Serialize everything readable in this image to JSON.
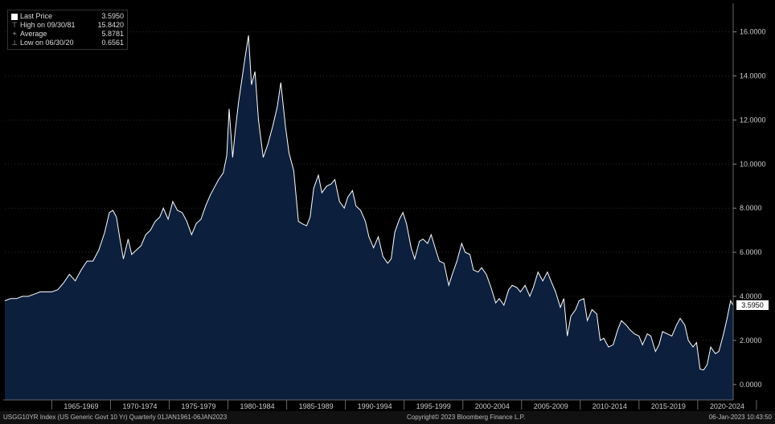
{
  "legend": {
    "last_label": "Last Price",
    "last_value": "3.5950",
    "high_label": "High on 09/30/81",
    "high_value": "15.8420",
    "avg_label": "Average",
    "avg_value": "5.8781",
    "low_label": "Low on 06/30/20",
    "low_value": "0.6561"
  },
  "last_price_tag": "3.5950",
  "footer": {
    "left": "USGG10YR Index (US Generic Govt 10 Yr)  Quarterly 01JAN1961-06JAN2023",
    "center": "Copyright© 2023 Bloomberg Finance L.P.",
    "right": "06-Jan-2023 10:43:50"
  },
  "colors": {
    "background": "#000000",
    "fill": "#0c1f3d",
    "line": "#ffffff"
  },
  "chart_data": {
    "type": "area",
    "title": "",
    "xlabel": "",
    "ylabel": "",
    "ylim": [
      -0.7,
      17.3
    ],
    "y_ticks": [
      "0.0000",
      "2.0000",
      "4.0000",
      "6.0000",
      "8.0000",
      "10.0000",
      "12.0000",
      "14.0000",
      "16.0000"
    ],
    "x_tick_labels": [
      "1965-1969",
      "1970-1974",
      "1975-1979",
      "1980-1984",
      "1985-1989",
      "1990-1994",
      "1995-1999",
      "2000-2004",
      "2005-2009",
      "2010-2014",
      "2015-2019",
      "2020-2024"
    ],
    "x_range": [
      1961.0,
      2023.02
    ],
    "series": [
      {
        "name": "",
        "x": [
          1961.0,
          1961.5,
          1962.0,
          1962.5,
          1963.0,
          1963.5,
          1964.0,
          1964.5,
          1965.0,
          1965.5,
          1966.0,
          1966.5,
          1967.0,
          1967.5,
          1968.0,
          1968.5,
          1969.0,
          1969.5,
          1969.9,
          1970.2,
          1970.5,
          1970.8,
          1971.1,
          1971.5,
          1971.8,
          1972.2,
          1972.6,
          1973.0,
          1973.4,
          1973.8,
          1974.2,
          1974.5,
          1974.9,
          1975.3,
          1975.7,
          1976.1,
          1976.5,
          1976.9,
          1977.3,
          1977.7,
          1978.1,
          1978.5,
          1978.9,
          1979.2,
          1979.6,
          1979.9,
          1980.1,
          1980.4,
          1980.6,
          1980.9,
          1981.2,
          1981.5,
          1981.75,
          1982.0,
          1982.3,
          1982.6,
          1983.0,
          1983.4,
          1983.8,
          1984.2,
          1984.5,
          1984.9,
          1985.2,
          1985.6,
          1986.0,
          1986.3,
          1986.7,
          1987.0,
          1987.3,
          1987.7,
          1988.0,
          1988.4,
          1988.8,
          1989.1,
          1989.5,
          1989.9,
          1990.2,
          1990.6,
          1990.9,
          1991.3,
          1991.7,
          1992.0,
          1992.4,
          1992.8,
          1993.2,
          1993.6,
          1993.9,
          1994.2,
          1994.6,
          1994.9,
          1995.2,
          1995.6,
          1995.9,
          1996.3,
          1996.6,
          1997.0,
          1997.3,
          1997.7,
          1998.0,
          1998.4,
          1998.8,
          1999.1,
          1999.5,
          1999.9,
          2000.2,
          2000.6,
          2000.9,
          2001.3,
          2001.6,
          2002.0,
          2002.4,
          2002.8,
          2003.1,
          2003.5,
          2003.9,
          2004.2,
          2004.6,
          2004.9,
          2005.3,
          2005.7,
          2006.0,
          2006.4,
          2006.8,
          2007.2,
          2007.5,
          2007.9,
          2008.3,
          2008.6,
          2008.9,
          2009.2,
          2009.6,
          2009.9,
          2010.3,
          2010.6,
          2011.0,
          2011.4,
          2011.7,
          2012.0,
          2012.4,
          2012.8,
          2013.2,
          2013.5,
          2013.9,
          2014.2,
          2014.6,
          2015.0,
          2015.3,
          2015.7,
          2016.0,
          2016.4,
          2016.7,
          2017.0,
          2017.4,
          2017.8,
          2018.2,
          2018.5,
          2018.9,
          2019.2,
          2019.6,
          2019.9,
          2020.2,
          2020.5,
          2020.8,
          2021.1,
          2021.5,
          2021.8,
          2022.2,
          2022.5,
          2022.8,
          2023.02
        ],
        "values": [
          3.8,
          3.9,
          3.9,
          4.0,
          4.0,
          4.1,
          4.2,
          4.2,
          4.2,
          4.3,
          4.6,
          5.0,
          4.7,
          5.2,
          5.6,
          5.6,
          6.1,
          6.9,
          7.8,
          7.9,
          7.6,
          6.6,
          5.7,
          6.6,
          5.9,
          6.1,
          6.3,
          6.8,
          7.0,
          7.4,
          7.6,
          8.0,
          7.5,
          8.3,
          7.9,
          7.8,
          7.4,
          6.8,
          7.3,
          7.5,
          8.1,
          8.6,
          9.0,
          9.3,
          9.6,
          10.4,
          12.5,
          10.3,
          11.4,
          12.8,
          13.9,
          15.0,
          15.84,
          13.6,
          14.2,
          12.0,
          10.3,
          10.9,
          11.7,
          12.6,
          13.7,
          11.7,
          10.5,
          9.7,
          7.4,
          7.3,
          7.2,
          7.6,
          8.9,
          9.5,
          8.7,
          9.0,
          9.1,
          9.3,
          8.3,
          8.0,
          8.5,
          8.8,
          8.1,
          7.9,
          7.4,
          6.7,
          6.2,
          6.7,
          5.8,
          5.5,
          5.7,
          6.9,
          7.5,
          7.8,
          7.3,
          6.2,
          5.7,
          6.5,
          6.6,
          6.4,
          6.8,
          6.1,
          5.6,
          5.5,
          4.5,
          5.0,
          5.6,
          6.4,
          6.0,
          5.9,
          5.2,
          5.1,
          5.3,
          5.0,
          4.4,
          3.7,
          3.9,
          3.6,
          4.3,
          4.5,
          4.4,
          4.2,
          4.5,
          4.0,
          4.4,
          5.1,
          4.7,
          5.1,
          4.7,
          4.2,
          3.5,
          3.9,
          2.2,
          3.1,
          3.4,
          3.8,
          3.9,
          2.9,
          3.4,
          3.2,
          2.0,
          2.1,
          1.7,
          1.8,
          2.5,
          2.9,
          2.7,
          2.5,
          2.3,
          2.2,
          1.8,
          2.3,
          2.2,
          1.5,
          1.8,
          2.4,
          2.3,
          2.2,
          2.7,
          3.0,
          2.7,
          2.0,
          1.7,
          1.9,
          0.7,
          0.66,
          0.9,
          1.7,
          1.4,
          1.5,
          2.3,
          3.0,
          3.8,
          3.595
        ]
      }
    ]
  }
}
